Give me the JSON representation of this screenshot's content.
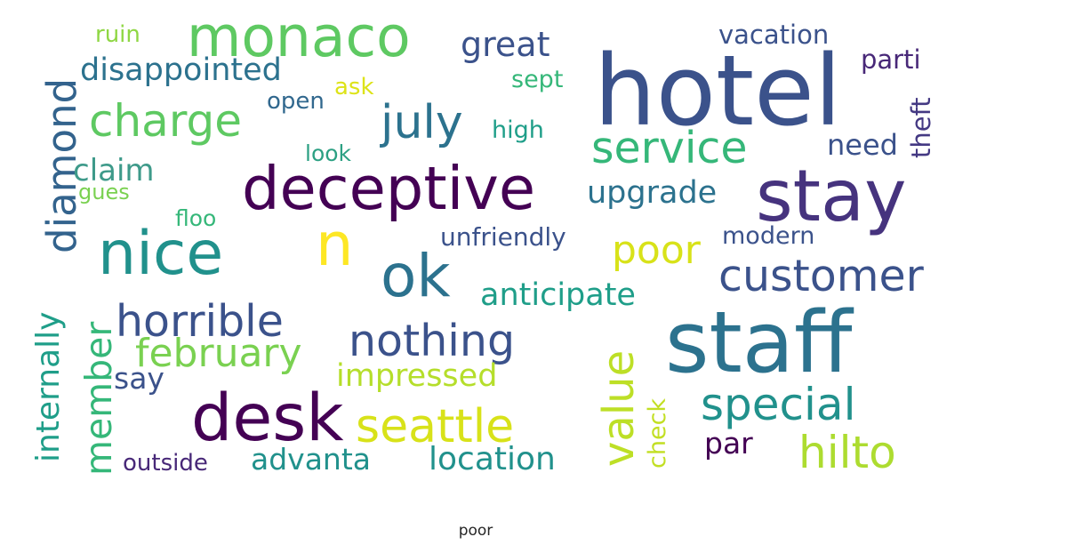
{
  "caption": "poor",
  "words": [
    {
      "text": "hotel",
      "color": "#3b528b"
    },
    {
      "text": "staff",
      "color": "#2c728e"
    },
    {
      "text": "stay",
      "color": "#46337e"
    },
    {
      "text": "deceptive",
      "color": "#440154"
    },
    {
      "text": "desk",
      "color": "#440154"
    },
    {
      "text": "monaco",
      "color": "#5ec962"
    },
    {
      "text": "nice",
      "color": "#21918c"
    },
    {
      "text": "ok",
      "color": "#2c728e"
    },
    {
      "text": "n",
      "color": "#fde725"
    },
    {
      "text": "charge",
      "color": "#5ec962"
    },
    {
      "text": "july",
      "color": "#2c728e"
    },
    {
      "text": "service",
      "color": "#35b779"
    },
    {
      "text": "customer",
      "color": "#3b528b"
    },
    {
      "text": "horrible",
      "color": "#3b528b"
    },
    {
      "text": "nothing",
      "color": "#3b528b"
    },
    {
      "text": "february",
      "color": "#7ad151"
    },
    {
      "text": "seattle",
      "color": "#d8e219"
    },
    {
      "text": "special",
      "color": "#21918c"
    },
    {
      "text": "hilto",
      "color": "#addc30"
    },
    {
      "text": "value",
      "color": "#bddf26"
    },
    {
      "text": "poor",
      "color": "#d8e219"
    },
    {
      "text": "diamond",
      "color": "#33638d"
    },
    {
      "text": "member",
      "color": "#35b779"
    },
    {
      "text": "internally",
      "color": "#1f9e89"
    },
    {
      "text": "disappointed",
      "color": "#2c728e"
    },
    {
      "text": "great",
      "color": "#3b528b"
    },
    {
      "text": "upgrade",
      "color": "#2c728e"
    },
    {
      "text": "anticipate",
      "color": "#1f9e89"
    },
    {
      "text": "location",
      "color": "#21918c"
    },
    {
      "text": "advanta",
      "color": "#21918c"
    },
    {
      "text": "impressed",
      "color": "#b5de2b"
    },
    {
      "text": "claim",
      "color": "#3e9a8a"
    },
    {
      "text": "say",
      "color": "#3b528b"
    },
    {
      "text": "need",
      "color": "#3b528b"
    },
    {
      "text": "par",
      "color": "#440154"
    },
    {
      "text": "outside",
      "color": "#482878"
    },
    {
      "text": "vacation",
      "color": "#3b528b"
    },
    {
      "text": "parti",
      "color": "#482878"
    },
    {
      "text": "unfriendly",
      "color": "#3b528b"
    },
    {
      "text": "modern",
      "color": "#3b528b"
    },
    {
      "text": "high",
      "color": "#1f9e89"
    },
    {
      "text": "theft",
      "color": "#443983"
    },
    {
      "text": "check",
      "color": "#c2df23"
    },
    {
      "text": "ruin",
      "color": "#8fd744"
    },
    {
      "text": "sept",
      "color": "#35b779"
    },
    {
      "text": "open",
      "color": "#31688e"
    },
    {
      "text": "ask",
      "color": "#dde318"
    },
    {
      "text": "look",
      "color": "#2ca083"
    },
    {
      "text": "gues",
      "color": "#7ad151"
    },
    {
      "text": "floo",
      "color": "#35b779"
    }
  ]
}
